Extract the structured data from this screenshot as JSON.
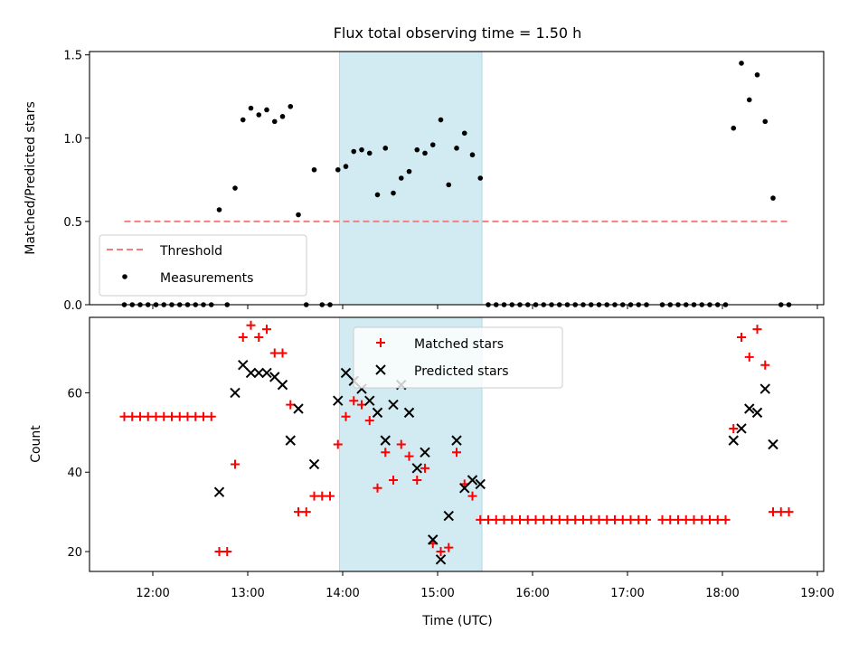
{
  "title": "Flux total observing time = 1.50 h",
  "xlabel": "Time (UTC)",
  "xticks": [
    "12:00",
    "13:00",
    "14:00",
    "15:00",
    "16:00",
    "17:00",
    "18:00",
    "19:00"
  ],
  "colors": {
    "threshold": "#f08080",
    "measurement": "#000000",
    "matched": "#ff0000",
    "predicted": "#000000",
    "window": "#add8e6"
  },
  "chart_data": [
    {
      "type": "scatter",
      "ylabel": "Matched/Predicted stars",
      "ylim": [
        0,
        1.52
      ],
      "yticks": [
        "0.0",
        "0.5",
        "1.0",
        "1.5"
      ],
      "highlight_window": [
        "13:58",
        "15:28"
      ],
      "threshold": {
        "name": "Threshold",
        "value": 0.5,
        "x_range": [
          "11:42",
          "18:42"
        ]
      },
      "legend": {
        "position": "lower left",
        "entries": [
          "Threshold",
          "Measurements"
        ]
      },
      "series": [
        {
          "name": "Measurements",
          "points": [
            [
              "11:42",
              0
            ],
            [
              "11:47",
              0
            ],
            [
              "11:52",
              0
            ],
            [
              "11:57",
              0
            ],
            [
              "12:02",
              0
            ],
            [
              "12:07",
              0
            ],
            [
              "12:12",
              0
            ],
            [
              "12:17",
              0
            ],
            [
              "12:22",
              0
            ],
            [
              "12:27",
              0
            ],
            [
              "12:32",
              0
            ],
            [
              "12:37",
              0
            ],
            [
              "12:42",
              0.57
            ],
            [
              "12:47",
              0
            ],
            [
              "12:52",
              0.7
            ],
            [
              "12:57",
              1.11
            ],
            [
              "13:02",
              1.18
            ],
            [
              "13:07",
              1.14
            ],
            [
              "13:12",
              1.17
            ],
            [
              "13:17",
              1.1
            ],
            [
              "13:22",
              1.13
            ],
            [
              "13:27",
              1.19
            ],
            [
              "13:32",
              0.54
            ],
            [
              "13:37",
              0
            ],
            [
              "13:42",
              0.81
            ],
            [
              "13:47",
              0
            ],
            [
              "13:52",
              0
            ],
            [
              "13:57",
              0.81
            ],
            [
              "14:02",
              0.83
            ],
            [
              "14:07",
              0.92
            ],
            [
              "14:12",
              0.93
            ],
            [
              "14:17",
              0.91
            ],
            [
              "14:22",
              0.66
            ],
            [
              "14:27",
              0.94
            ],
            [
              "14:32",
              0.67
            ],
            [
              "14:37",
              0.76
            ],
            [
              "14:42",
              0.8
            ],
            [
              "14:47",
              0.93
            ],
            [
              "14:52",
              0.91
            ],
            [
              "14:57",
              0.96
            ],
            [
              "15:02",
              1.11
            ],
            [
              "15:07",
              0.72
            ],
            [
              "15:12",
              0.94
            ],
            [
              "15:17",
              1.03
            ],
            [
              "15:22",
              0.9
            ],
            [
              "15:27",
              0.76
            ],
            [
              "15:32",
              0
            ],
            [
              "15:37",
              0
            ],
            [
              "15:42",
              0
            ],
            [
              "15:47",
              0
            ],
            [
              "15:52",
              0
            ],
            [
              "15:57",
              0
            ],
            [
              "16:02",
              0
            ],
            [
              "16:07",
              0
            ],
            [
              "16:12",
              0
            ],
            [
              "16:17",
              0
            ],
            [
              "16:22",
              0
            ],
            [
              "16:27",
              0
            ],
            [
              "16:32",
              0
            ],
            [
              "16:37",
              0
            ],
            [
              "16:42",
              0
            ],
            [
              "16:47",
              0
            ],
            [
              "16:52",
              0
            ],
            [
              "16:57",
              0
            ],
            [
              "17:02",
              0
            ],
            [
              "17:07",
              0
            ],
            [
              "17:12",
              0
            ],
            [
              "17:22",
              0
            ],
            [
              "17:27",
              0
            ],
            [
              "17:32",
              0
            ],
            [
              "17:37",
              0
            ],
            [
              "17:42",
              0
            ],
            [
              "17:47",
              0
            ],
            [
              "17:52",
              0
            ],
            [
              "17:57",
              0
            ],
            [
              "18:02",
              0
            ],
            [
              "18:07",
              1.06
            ],
            [
              "18:12",
              1.45
            ],
            [
              "18:17",
              1.23
            ],
            [
              "18:22",
              1.38
            ],
            [
              "18:27",
              1.1
            ],
            [
              "18:32",
              0.64
            ],
            [
              "18:37",
              0
            ],
            [
              "18:42",
              0
            ]
          ]
        }
      ]
    },
    {
      "type": "scatter",
      "ylabel": "Count",
      "ylim": [
        15,
        79
      ],
      "yticks": [
        "20",
        "40",
        "60"
      ],
      "highlight_window": [
        "13:58",
        "15:28"
      ],
      "legend": {
        "position": "upper center",
        "entries": [
          "Matched stars",
          "Predicted stars"
        ]
      },
      "series": [
        {
          "name": "Matched stars",
          "marker": "plus",
          "points": [
            [
              "11:42",
              54
            ],
            [
              "11:47",
              54
            ],
            [
              "11:52",
              54
            ],
            [
              "11:57",
              54
            ],
            [
              "12:02",
              54
            ],
            [
              "12:07",
              54
            ],
            [
              "12:12",
              54
            ],
            [
              "12:17",
              54
            ],
            [
              "12:22",
              54
            ],
            [
              "12:27",
              54
            ],
            [
              "12:32",
              54
            ],
            [
              "12:37",
              54
            ],
            [
              "12:42",
              20
            ],
            [
              "12:47",
              20
            ],
            [
              "12:52",
              42
            ],
            [
              "12:57",
              74
            ],
            [
              "13:02",
              77
            ],
            [
              "13:07",
              74
            ],
            [
              "13:12",
              76
            ],
            [
              "13:17",
              70
            ],
            [
              "13:22",
              70
            ],
            [
              "13:27",
              57
            ],
            [
              "13:32",
              30
            ],
            [
              "13:37",
              30
            ],
            [
              "13:42",
              34
            ],
            [
              "13:47",
              34
            ],
            [
              "13:52",
              34
            ],
            [
              "13:57",
              47
            ],
            [
              "14:02",
              54
            ],
            [
              "14:07",
              58
            ],
            [
              "14:12",
              57
            ],
            [
              "14:17",
              53
            ],
            [
              "14:22",
              36
            ],
            [
              "14:27",
              45
            ],
            [
              "14:32",
              38
            ],
            [
              "14:37",
              47
            ],
            [
              "14:42",
              44
            ],
            [
              "14:47",
              38
            ],
            [
              "14:52",
              41
            ],
            [
              "14:57",
              22
            ],
            [
              "15:02",
              20
            ],
            [
              "15:07",
              21
            ],
            [
              "15:12",
              45
            ],
            [
              "15:17",
              37
            ],
            [
              "15:22",
              34
            ],
            [
              "15:27",
              28
            ],
            [
              "15:32",
              28
            ],
            [
              "15:37",
              28
            ],
            [
              "15:42",
              28
            ],
            [
              "15:47",
              28
            ],
            [
              "15:52",
              28
            ],
            [
              "15:57",
              28
            ],
            [
              "16:02",
              28
            ],
            [
              "16:07",
              28
            ],
            [
              "16:12",
              28
            ],
            [
              "16:17",
              28
            ],
            [
              "16:22",
              28
            ],
            [
              "16:27",
              28
            ],
            [
              "16:32",
              28
            ],
            [
              "16:37",
              28
            ],
            [
              "16:42",
              28
            ],
            [
              "16:47",
              28
            ],
            [
              "16:52",
              28
            ],
            [
              "16:57",
              28
            ],
            [
              "17:02",
              28
            ],
            [
              "17:07",
              28
            ],
            [
              "17:12",
              28
            ],
            [
              "17:22",
              28
            ],
            [
              "17:27",
              28
            ],
            [
              "17:32",
              28
            ],
            [
              "17:37",
              28
            ],
            [
              "17:42",
              28
            ],
            [
              "17:47",
              28
            ],
            [
              "17:52",
              28
            ],
            [
              "17:57",
              28
            ],
            [
              "18:02",
              28
            ],
            [
              "18:07",
              51
            ],
            [
              "18:12",
              74
            ],
            [
              "18:17",
              69
            ],
            [
              "18:22",
              76
            ],
            [
              "18:27",
              67
            ],
            [
              "18:32",
              30
            ],
            [
              "18:37",
              30
            ],
            [
              "18:42",
              30
            ]
          ]
        },
        {
          "name": "Predicted stars",
          "marker": "x",
          "points": [
            [
              "12:42",
              35
            ],
            [
              "12:52",
              60
            ],
            [
              "12:57",
              67
            ],
            [
              "13:02",
              65
            ],
            [
              "13:07",
              65
            ],
            [
              "13:12",
              65
            ],
            [
              "13:17",
              64
            ],
            [
              "13:22",
              62
            ],
            [
              "13:27",
              48
            ],
            [
              "13:32",
              56
            ],
            [
              "13:42",
              42
            ],
            [
              "13:57",
              58
            ],
            [
              "14:02",
              65
            ],
            [
              "14:07",
              63
            ],
            [
              "14:12",
              61
            ],
            [
              "14:17",
              58
            ],
            [
              "14:22",
              55
            ],
            [
              "14:27",
              48
            ],
            [
              "14:32",
              57
            ],
            [
              "14:37",
              62
            ],
            [
              "14:42",
              55
            ],
            [
              "14:47",
              41
            ],
            [
              "14:52",
              45
            ],
            [
              "14:57",
              23
            ],
            [
              "15:02",
              18
            ],
            [
              "15:07",
              29
            ],
            [
              "15:12",
              48
            ],
            [
              "15:17",
              36
            ],
            [
              "15:22",
              38
            ],
            [
              "15:27",
              37
            ],
            [
              "18:07",
              48
            ],
            [
              "18:12",
              51
            ],
            [
              "18:17",
              56
            ],
            [
              "18:22",
              55
            ],
            [
              "18:27",
              61
            ],
            [
              "18:32",
              47
            ]
          ]
        }
      ]
    }
  ]
}
